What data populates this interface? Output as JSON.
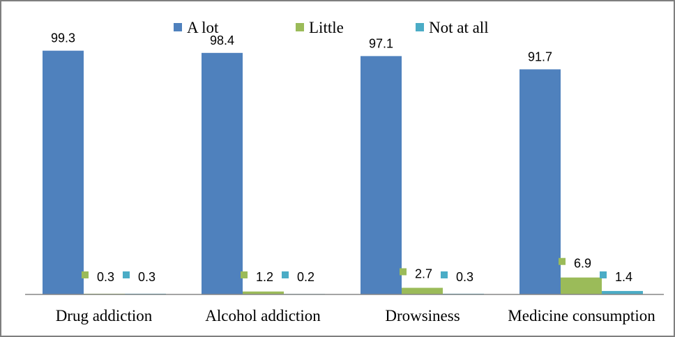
{
  "chart_data": {
    "type": "bar",
    "title": "",
    "xlabel": "",
    "ylabel": "",
    "ylim": [
      0,
      110
    ],
    "grid": false,
    "legend_position": "top",
    "categories": [
      "Drug addiction",
      "Alcohol addiction",
      "Drowsiness",
      "Medicine consumption"
    ],
    "series": [
      {
        "name": "A lot",
        "color": "#4F81BD",
        "values": [
          99.3,
          98.4,
          97.1,
          91.7
        ],
        "labels": [
          "99.3",
          "98.4",
          "97.1",
          "91.7"
        ]
      },
      {
        "name": "Little",
        "color": "#9BBB59",
        "values": [
          0.3,
          1.2,
          2.7,
          6.9
        ],
        "labels": [
          "0.3",
          "1.2",
          "2.7",
          "6.9"
        ]
      },
      {
        "name": "Not at all",
        "color": "#4BACC6",
        "values": [
          0.3,
          0.2,
          0.3,
          1.4
        ],
        "labels": [
          "0.3",
          "0.2",
          "0.3",
          "1.4"
        ]
      }
    ]
  }
}
